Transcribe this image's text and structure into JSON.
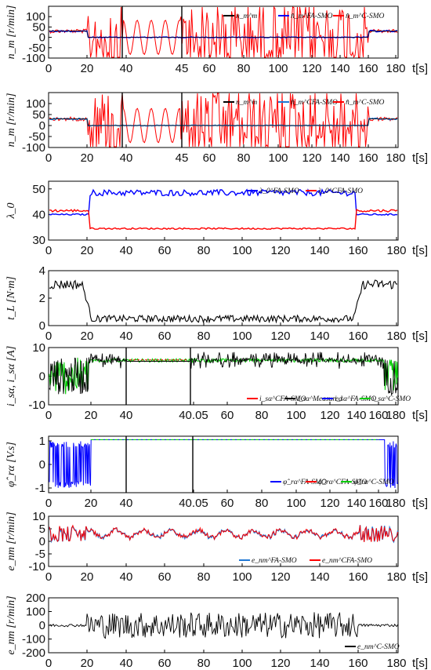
{
  "figure": {
    "background": "#ffffff"
  },
  "colors": {
    "black": "#000000",
    "red": "#ff0000",
    "blue": "#0000ff",
    "green": "#00cc00",
    "lightblue": "#1f77d4"
  },
  "chart_data": [
    {
      "type": "line",
      "id": "p1",
      "ylabel": "n_m [r/min]",
      "ylim": [
        -100,
        150
      ],
      "yticks": [
        "100",
        "50",
        "0",
        "-50",
        "-100"
      ],
      "ytick_values": [
        100,
        50,
        0,
        -50,
        -100
      ],
      "xtick_labels": [
        "0",
        "20",
        "40",
        "45",
        "60",
        "80",
        "100",
        "120",
        "140",
        "160",
        "180",
        "t[s]"
      ],
      "split_x": [
        40,
        45
      ],
      "legend": [
        "n_m^m",
        "n̂_m^FA-SMO",
        "n̂_m^C-SMO"
      ],
      "series": [
        {
          "name": "n_m^m",
          "color": "#000000",
          "values": {
            "base": 30,
            "active_range": [
              20,
              160
            ],
            "active_level": 0
          }
        },
        {
          "name": "n̂_m^FA-SMO",
          "color": "#0000ff",
          "values": {
            "base": 30,
            "active_range": [
              20,
              160
            ],
            "active_level": 0
          }
        },
        {
          "name": "n̂_m^C-SMO",
          "color": "#ff0000",
          "values": {
            "base": 30,
            "active_range": [
              20,
              160
            ],
            "active_amplitude": 110
          }
        }
      ]
    },
    {
      "type": "line",
      "id": "p2",
      "ylabel": "n_m [r/min]",
      "ylim": [
        -100,
        150
      ],
      "yticks": [
        "100",
        "50",
        "0",
        "-50",
        "-100"
      ],
      "ytick_values": [
        100,
        50,
        0,
        -50,
        -100
      ],
      "xtick_labels": [
        "0",
        "20",
        "40",
        "45",
        "60",
        "80",
        "100",
        "120",
        "140",
        "160",
        "180",
        "t[s]"
      ],
      "split_x": [
        40,
        45
      ],
      "legend": [
        "n_m^m",
        "n̂_m^CFA-SMO",
        "n̂_m^C-SMO"
      ],
      "series": [
        {
          "name": "n_m^m",
          "color": "#000000",
          "values": {
            "base": 30,
            "active_range": [
              20,
              160
            ],
            "active_level": 0
          }
        },
        {
          "name": "n̂_m^CFA-SMO",
          "color": "#1f77d4",
          "values": {
            "base": 30,
            "active_range": [
              20,
              160
            ],
            "active_level": 0
          }
        },
        {
          "name": "n̂_m^C-SMO",
          "color": "#ff0000",
          "values": {
            "base": 30,
            "active_range": [
              20,
              160
            ],
            "active_amplitude": 110
          }
        }
      ]
    },
    {
      "type": "line",
      "id": "p3",
      "ylabel": "λ_0",
      "ylim": [
        30,
        53
      ],
      "yticks": [
        "50",
        "40",
        "30"
      ],
      "ytick_values": [
        50,
        40,
        30
      ],
      "xtick_labels": [
        "0",
        "20",
        "40",
        "60",
        "80",
        "100",
        "120",
        "140",
        "160",
        "180",
        "t[s]"
      ],
      "legend": [
        "λ_0^FA-SMO",
        "λ_0^CFA-SMO"
      ],
      "series": [
        {
          "name": "λ_0^FA-SMO",
          "color": "#0000ff",
          "values": {
            "outside": 40,
            "inside": 48.5
          }
        },
        {
          "name": "λ_0^CFA-SMO",
          "color": "#ff0000",
          "values": {
            "outside": 41.5,
            "inside": 34.5
          }
        }
      ]
    },
    {
      "type": "line",
      "id": "p4",
      "ylabel": "t_L [N·m]",
      "ylim": [
        0,
        4
      ],
      "yticks": [
        "4",
        "2",
        "0"
      ],
      "ytick_values": [
        4,
        2,
        0
      ],
      "xtick_labels": [
        "0",
        "20",
        "40",
        "60",
        "80",
        "100",
        "120",
        "140",
        "160",
        "180",
        "t[s]"
      ],
      "series": [
        {
          "name": "t_L",
          "color": "#000000",
          "values": {
            "outside": 3.0,
            "inside": 0.5
          }
        }
      ]
    },
    {
      "type": "line",
      "id": "p5",
      "ylabel": "i_sα, i_sα [A]",
      "ylim": [
        -10,
        10
      ],
      "yticks": [
        "10",
        "0",
        "-10"
      ],
      "ytick_values": [
        10,
        0,
        -10
      ],
      "xtick_labels": [
        "0",
        "20",
        "40",
        "40.05",
        "60",
        "80",
        "100",
        "120",
        "140",
        "160",
        "180",
        "t[s]"
      ],
      "split_x": [
        40,
        40.05
      ],
      "legend": [
        "i_sα^CFA-SMO",
        "i_sα^Measured",
        "i_sα^FA-SMO",
        "i_sα^C-SMO"
      ],
      "series": [
        {
          "name": "i_sα^Measured",
          "color": "#000000",
          "values": {
            "outside_amplitude": 6.5,
            "inside_level": 5.5
          }
        },
        {
          "name": "i_sα^C-SMO",
          "color": "#00cc00",
          "values": {
            "outside_amplitude": 6.5,
            "inside_level": 5.5
          }
        }
      ]
    },
    {
      "type": "line",
      "id": "p6",
      "ylabel": "φ̂_rα [V.s]",
      "ylim": [
        -1.2,
        1.2
      ],
      "yticks": [
        "1",
        "0",
        "-1"
      ],
      "ytick_values": [
        1,
        0,
        -1
      ],
      "xtick_labels": [
        "0",
        "20",
        "40",
        "40.05",
        "60",
        "80",
        "100",
        "120",
        "140",
        "160",
        "180",
        "t[s]"
      ],
      "split_x": [
        40,
        40.05
      ],
      "legend": [
        "φ̂_rα^FA-SMO",
        "φ̂_rα^CFA-SMO",
        "φ̂_rα^C-SMO"
      ],
      "series": [
        {
          "name": "φ̂_rα^FA-SMO",
          "color": "#0000ff",
          "values": {
            "outside_amplitude": 1.0,
            "inside_level": 1.05
          }
        },
        {
          "name": "φ̂_rα^C-SMO",
          "color": "#00cc00",
          "values": {
            "inside_level": 1.05
          }
        }
      ]
    },
    {
      "type": "line",
      "id": "p7",
      "ylabel": "e_nm [r/min]",
      "ylim": [
        -10,
        10
      ],
      "yticks": [
        "10",
        "5",
        "0",
        "-5",
        "-10"
      ],
      "ytick_values": [
        10,
        5,
        0,
        -5,
        -10
      ],
      "xtick_labels": [
        "0",
        "20",
        "40",
        "60",
        "80",
        "100",
        "120",
        "140",
        "160",
        "180",
        "t[s]"
      ],
      "legend": [
        "e_nm^FA-SMO",
        "e_nm^CFA-SMO"
      ],
      "series": [
        {
          "name": "e_nm^FA-SMO",
          "color": "#1f77d4",
          "values": {
            "mean": 3
          }
        },
        {
          "name": "e_nm^CFA-SMO",
          "color": "#ff0000",
          "values": {
            "mean": 3
          }
        }
      ]
    },
    {
      "type": "line",
      "id": "p8",
      "ylabel": "e_nm [r/min]",
      "ylim": [
        -200,
        200
      ],
      "yticks": [
        "200",
        "100",
        "0",
        "-100",
        "-200"
      ],
      "ytick_values": [
        200,
        100,
        0,
        -100,
        -200
      ],
      "xtick_labels": [
        "0",
        "20",
        "40",
        "60",
        "80",
        "100",
        "120",
        "140",
        "160",
        "180",
        "t[s]"
      ],
      "legend": [
        "e_nm^C-SMO"
      ],
      "series": [
        {
          "name": "e_nm^C-SMO",
          "color": "#000000",
          "values": {
            "outside_amplitude": 10,
            "inside_amplitude": 90
          }
        }
      ]
    }
  ]
}
